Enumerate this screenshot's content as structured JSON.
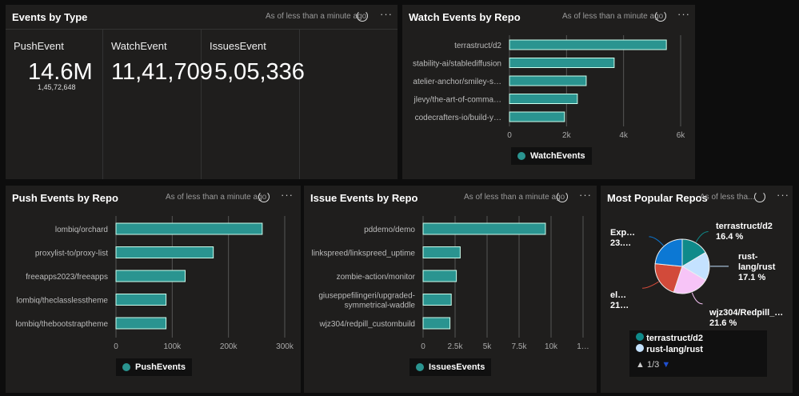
{
  "common": {
    "as_of": "As of less than a minute ago",
    "as_of_short": "As of less tha...",
    "more": "···"
  },
  "events_by_type": {
    "title": "Events by Type",
    "tiles": [
      {
        "label": "PushEvent",
        "value": "14.6M",
        "sub": "1,45,72,648"
      },
      {
        "label": "WatchEvent",
        "value": "11,41,709"
      },
      {
        "label": "IssuesEvent",
        "value": "5,05,336"
      }
    ]
  },
  "chart_data": [
    {
      "id": "watch",
      "type": "bar",
      "title": "Watch Events by Repo",
      "categories": [
        "terrastruct/d2",
        "stability-ai/stablediffusion",
        "atelier-anchor/smiley-s…",
        "jlevy/the-art-of-comma…",
        "codecrafters-io/build-y…"
      ],
      "values": [
        5500,
        3670,
        2690,
        2380,
        1930
      ],
      "ticks": [
        "0",
        "2k",
        "4k",
        "6k"
      ],
      "tick_values": [
        0,
        2000,
        4000,
        6000
      ],
      "xlim": [
        0,
        6000
      ],
      "legend": "WatchEvents",
      "color": "#2a9490"
    },
    {
      "id": "push",
      "type": "bar",
      "title": "Push Events by Repo",
      "categories": [
        "lombiq/orchard",
        "proxylist-to/proxy-list",
        "freeapps2023/freeapps",
        "lombiq/theclasslesstheme",
        "lombiq/thebootstraptheme"
      ],
      "values": [
        260000,
        173000,
        123000,
        89000,
        89000
      ],
      "ticks": [
        "0",
        "100k",
        "200k",
        "300k"
      ],
      "tick_values": [
        0,
        100000,
        200000,
        300000
      ],
      "xlim": [
        0,
        300000
      ],
      "legend": "PushEvents",
      "color": "#2a9490"
    },
    {
      "id": "issue",
      "type": "bar",
      "title": "Issue Events by Repo",
      "categories": [
        "pddemo/demo",
        "linkspreed/linkspreed_uptime",
        "zombie-action/monitor",
        "giuseppefilingeri/upgraded-|symmetrical-waddle",
        "wjz304/redpill_custombuild"
      ],
      "values": [
        9560,
        2900,
        2600,
        2200,
        2100
      ],
      "ticks": [
        "0",
        "2.5k",
        "5k",
        "7.5k",
        "10k",
        "1…"
      ],
      "tick_values": [
        0,
        2500,
        5000,
        7500,
        10000,
        12500
      ],
      "xlim": [
        0,
        12500
      ],
      "legend": "IssuesEvents",
      "color": "#2a9490"
    },
    {
      "id": "popular",
      "type": "pie",
      "title": "Most Popular Repos",
      "slices": [
        {
          "name": "terrastruct/d2",
          "label": [
            "terrastruct/d2",
            "16.4 %"
          ],
          "value": 16.4,
          "color": "#0f8a8a"
        },
        {
          "name": "rust-lang/rust",
          "label": [
            "rust-",
            "lang/rust",
            "17.1 %"
          ],
          "value": 17.1,
          "color": "#c4e2ff"
        },
        {
          "name": "wjz304/Redpill_…",
          "label": [
            "wjz304/Redpill_…",
            "21.6 %"
          ],
          "value": 21.6,
          "color": "#f7c4f7"
        },
        {
          "name": "el…",
          "label": [
            "el…",
            "21…"
          ],
          "value": 21.5,
          "color": "#d24a3a"
        },
        {
          "name": "Exp…",
          "label": [
            "Exp…",
            "23.…"
          ],
          "value": 23.4,
          "color": "#0c78d4"
        }
      ],
      "legend": [
        "terrastruct/d2",
        "rust-lang/rust"
      ],
      "legend_page": "1/3"
    }
  ]
}
